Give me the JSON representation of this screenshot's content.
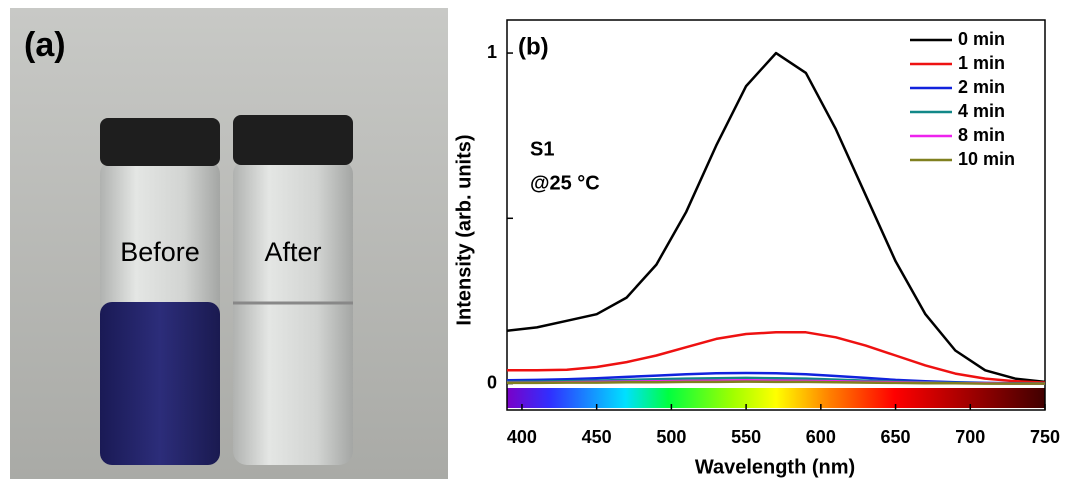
{
  "photo": {
    "label": "(a)",
    "vial_labels": [
      "Before",
      "After"
    ]
  },
  "chart_data": {
    "type": "line",
    "panel_label": "(b)",
    "annotations": [
      "S1",
      "@25 °C"
    ],
    "x_label": "Wavelength (nm)",
    "y_label": "Intensity (arb. units)",
    "x": [
      390,
      410,
      430,
      450,
      470,
      490,
      510,
      530,
      550,
      570,
      590,
      610,
      630,
      650,
      670,
      690,
      710,
      730,
      750
    ],
    "xlim": [
      390,
      750
    ],
    "xticks": [
      400,
      450,
      500,
      550,
      600,
      650,
      700,
      750
    ],
    "ylim": [
      -0.08,
      1.1
    ],
    "yticks": [
      0,
      1
    ],
    "yminorticks": [
      0.5
    ],
    "legend": "upper right",
    "series": [
      {
        "name": "0 min",
        "color": "#000000",
        "values": [
          0.16,
          0.17,
          0.19,
          0.21,
          0.26,
          0.36,
          0.52,
          0.72,
          0.9,
          1.0,
          0.94,
          0.77,
          0.57,
          0.37,
          0.21,
          0.1,
          0.04,
          0.015,
          0.005
        ]
      },
      {
        "name": "1 min",
        "color": "#ee1111",
        "values": [
          0.04,
          0.04,
          0.042,
          0.05,
          0.065,
          0.085,
          0.11,
          0.135,
          0.15,
          0.155,
          0.155,
          0.14,
          0.115,
          0.085,
          0.055,
          0.03,
          0.015,
          0.007,
          0.003
        ]
      },
      {
        "name": "2 min",
        "color": "#1122dd",
        "values": [
          0.01,
          0.011,
          0.013,
          0.016,
          0.02,
          0.024,
          0.028,
          0.031,
          0.032,
          0.031,
          0.028,
          0.023,
          0.017,
          0.011,
          0.007,
          0.004,
          0.002,
          0.001,
          0
        ]
      },
      {
        "name": "4 min",
        "color": "#118888",
        "values": [
          0.005,
          0.006,
          0.007,
          0.009,
          0.011,
          0.013,
          0.015,
          0.016,
          0.017,
          0.016,
          0.015,
          0.012,
          0.009,
          0.006,
          0.004,
          0.002,
          0.001,
          0,
          0
        ]
      },
      {
        "name": "8 min",
        "color": "#ee22ee",
        "values": [
          0.003,
          0.003,
          0.004,
          0.005,
          0.006,
          0.007,
          0.008,
          0.009,
          0.01,
          0.009,
          0.008,
          0.007,
          0.005,
          0.004,
          0.002,
          0.001,
          0.001,
          0,
          0
        ]
      },
      {
        "name": "10 min",
        "color": "#808020",
        "values": [
          0.002,
          0.002,
          0.003,
          0.003,
          0.004,
          0.004,
          0.005,
          0.005,
          0.006,
          0.005,
          0.005,
          0.004,
          0.003,
          0.002,
          0.001,
          0.001,
          0,
          0,
          0
        ]
      }
    ]
  }
}
